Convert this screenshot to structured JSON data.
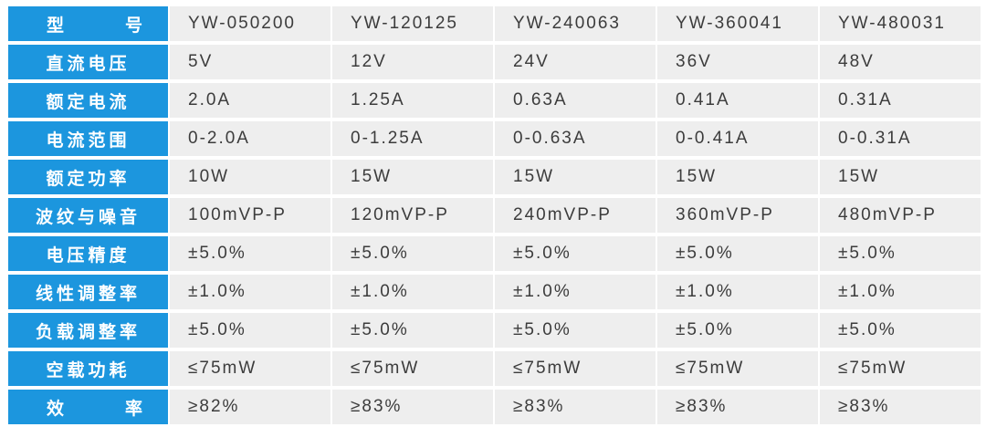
{
  "rows": [
    {
      "label": "型号",
      "values": [
        "YW-050200",
        "YW-120125",
        "YW-240063",
        "YW-360041",
        "YW-480031"
      ]
    },
    {
      "label": "直流电压",
      "values": [
        "5V",
        "12V",
        "24V",
        "36V",
        "48V"
      ]
    },
    {
      "label": "额定电流",
      "values": [
        "2.0A",
        "1.25A",
        "0.63A",
        "0.41A",
        "0.31A"
      ]
    },
    {
      "label": "电流范围",
      "values": [
        "0-2.0A",
        "0-1.25A",
        "0-0.63A",
        "0-0.41A",
        "0-0.31A"
      ]
    },
    {
      "label": "额定功率",
      "values": [
        "10W",
        "15W",
        "15W",
        "15W",
        "15W"
      ]
    },
    {
      "label": "波纹与噪音",
      "values": [
        "100mVP-P",
        "120mVP-P",
        "240mVP-P",
        "360mVP-P",
        "480mVP-P"
      ]
    },
    {
      "label": "电压精度",
      "values": [
        "±5.0%",
        "±5.0%",
        "±5.0%",
        "±5.0%",
        "±5.0%"
      ]
    },
    {
      "label": "线性调整率",
      "values": [
        "±1.0%",
        "±1.0%",
        "±1.0%",
        "±1.0%",
        "±1.0%"
      ]
    },
    {
      "label": "负载调整率",
      "values": [
        "±5.0%",
        "±5.0%",
        "±5.0%",
        "±5.0%",
        "±5.0%"
      ]
    },
    {
      "label": "空载功耗",
      "values": [
        "≤75mW",
        "≤75mW",
        "≤75mW",
        "≤75mW",
        "≤75mW"
      ]
    },
    {
      "label": "效率",
      "values": [
        "≥82%",
        "≥83%",
        "≥83%",
        "≥83%",
        "≥83%"
      ]
    }
  ],
  "colors": {
    "header_bg": "#1c96de",
    "header_text": "#ffffff",
    "cell_bg": "#eeeeee",
    "cell_text": "#3c3c3c"
  }
}
